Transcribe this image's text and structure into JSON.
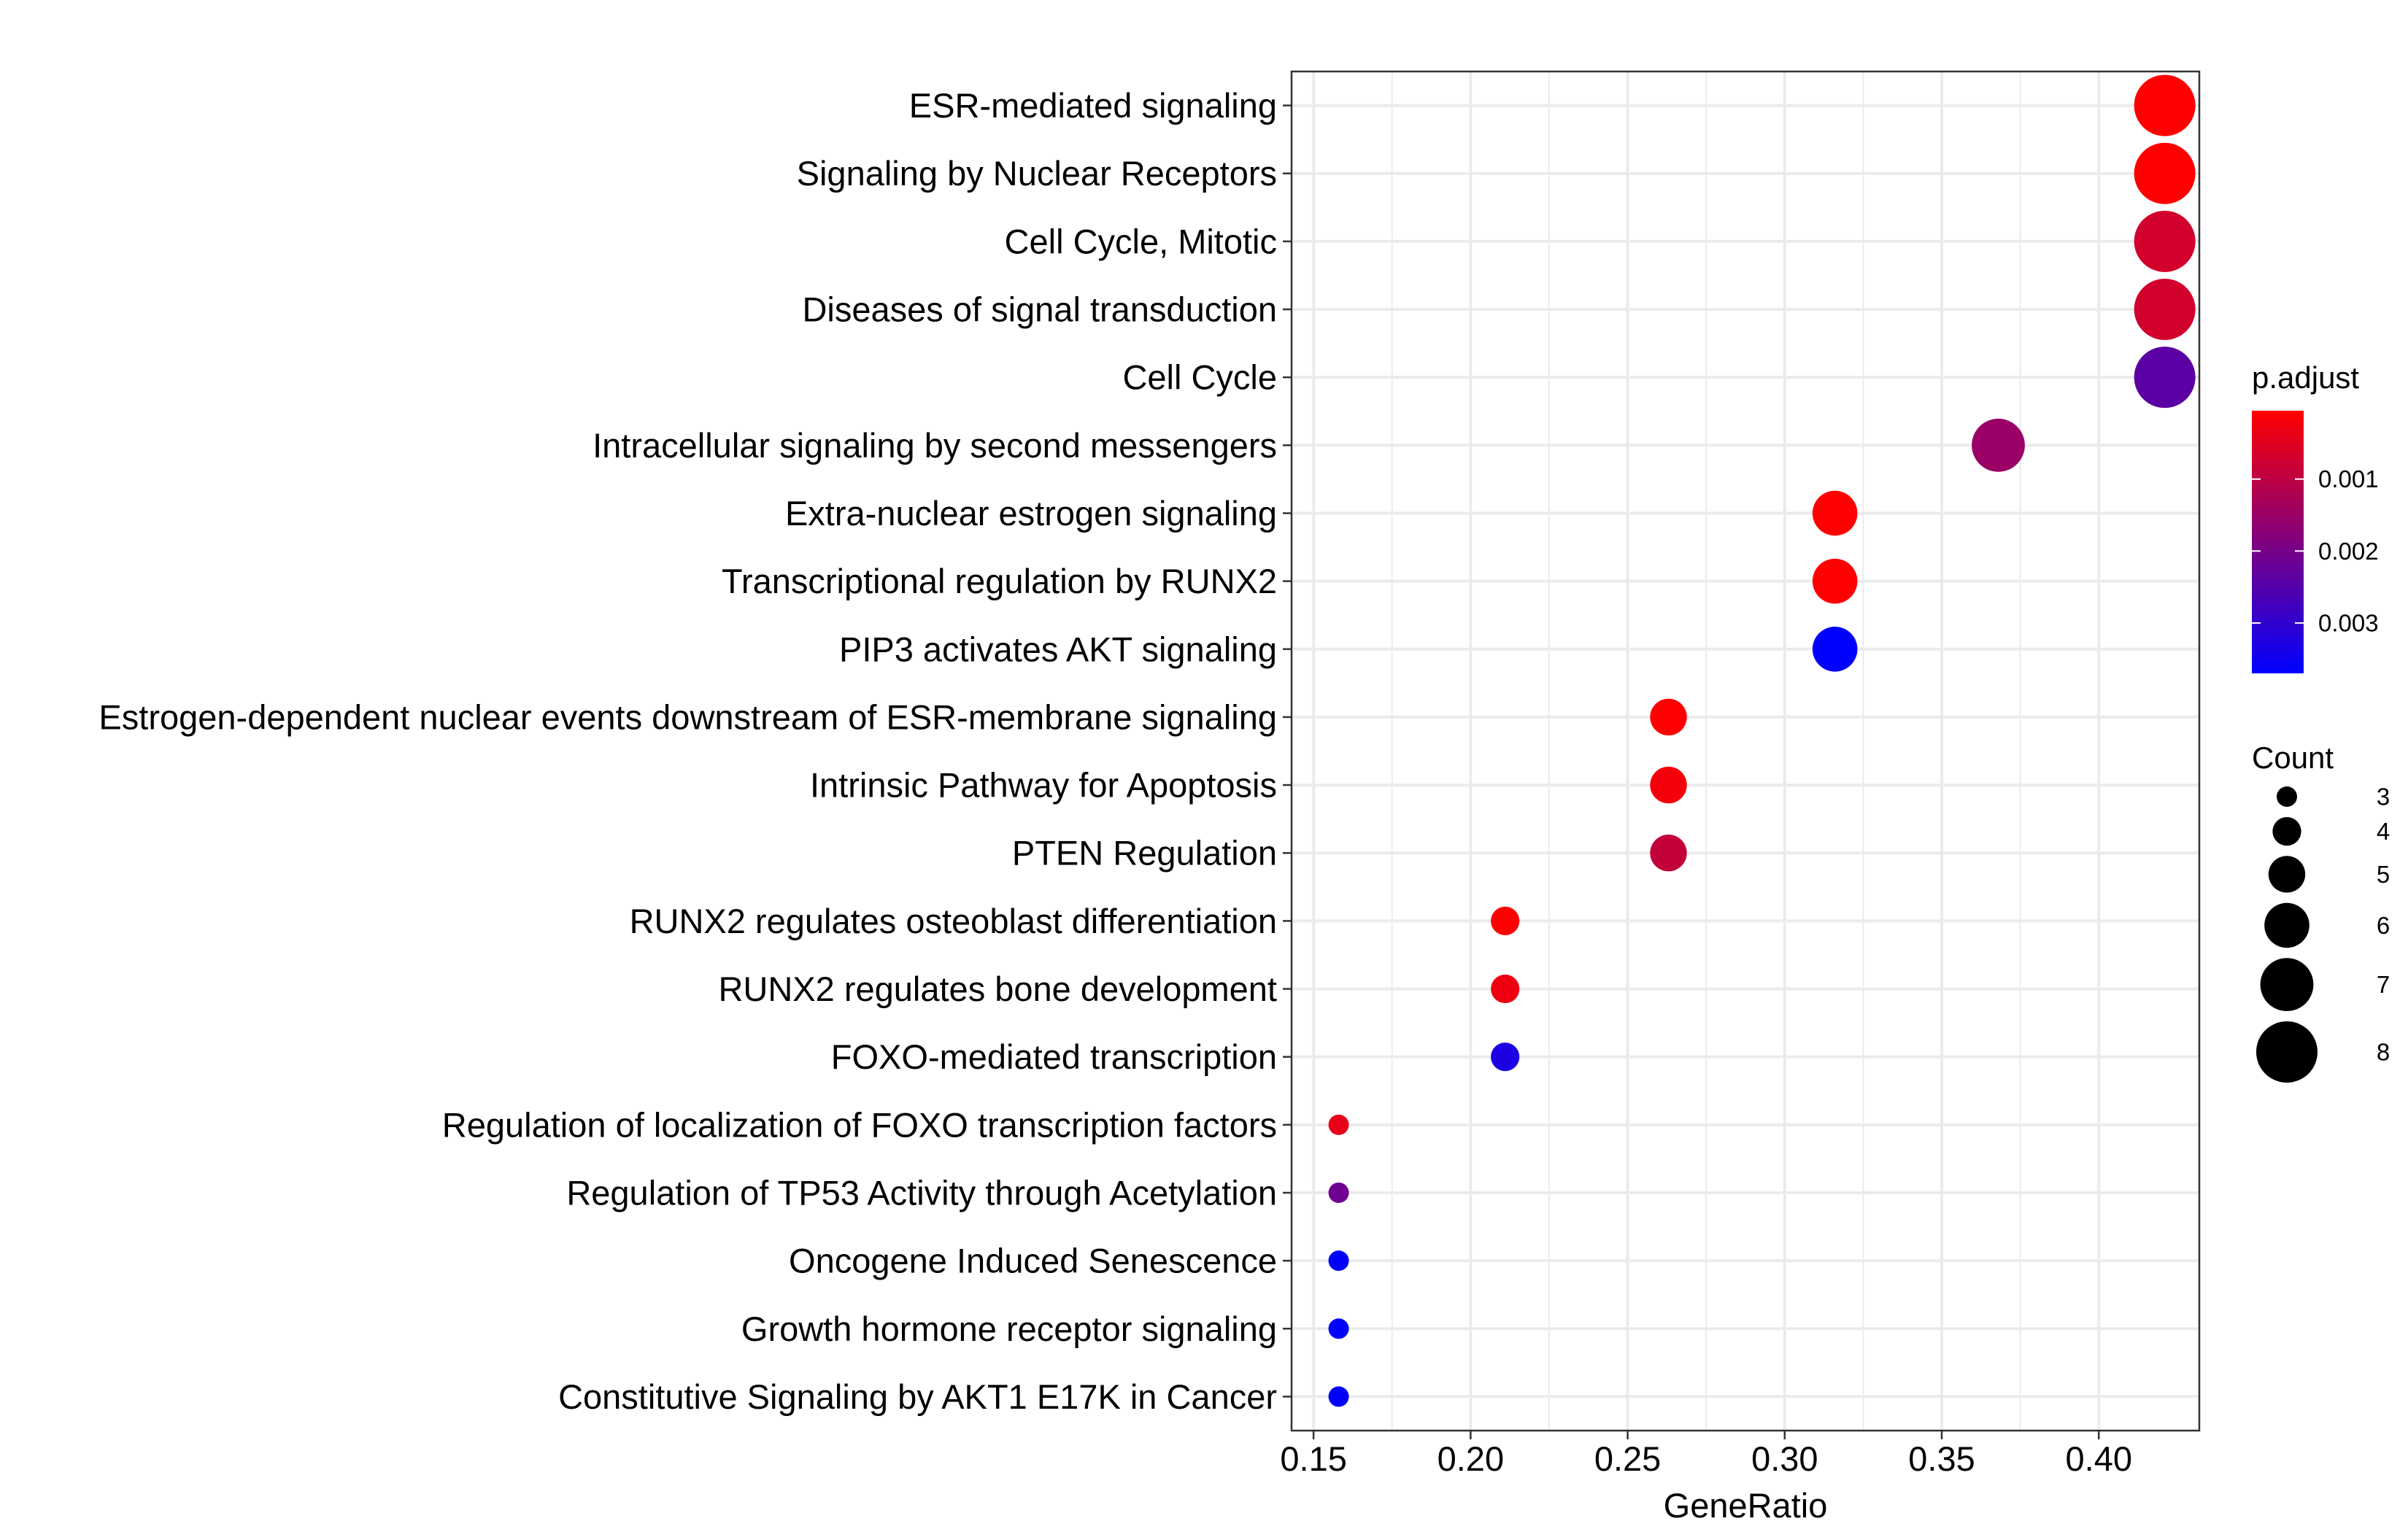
{
  "chart_data": {
    "type": "scatter",
    "xlabel": "GeneRatio",
    "ylabel": "",
    "xlim": [
      0.143,
      0.432
    ],
    "x_ticks": [
      0.15,
      0.2,
      0.25,
      0.3,
      0.35,
      0.4
    ],
    "x_tick_labels": [
      "0.15",
      "0.20",
      "0.25",
      "0.30",
      "0.35",
      "0.40"
    ],
    "grid": true,
    "legend_position": "right",
    "pathways": [
      {
        "label": "ESR-mediated signaling",
        "gene_ratio": 0.421,
        "count": 8,
        "p_adjust": 5e-05
      },
      {
        "label": "Signaling by Nuclear Receptors",
        "gene_ratio": 0.421,
        "count": 8,
        "p_adjust": 5e-05
      },
      {
        "label": "Cell Cycle, Mitotic",
        "gene_ratio": 0.421,
        "count": 8,
        "p_adjust": 0.0007
      },
      {
        "label": "Diseases of signal transduction",
        "gene_ratio": 0.421,
        "count": 8,
        "p_adjust": 0.0007
      },
      {
        "label": "Cell Cycle",
        "gene_ratio": 0.421,
        "count": 8,
        "p_adjust": 0.0024
      },
      {
        "label": "Intracellular signaling by second messengers",
        "gene_ratio": 0.368,
        "count": 7,
        "p_adjust": 0.0015
      },
      {
        "label": "Extra-nuclear estrogen signaling",
        "gene_ratio": 0.316,
        "count": 6,
        "p_adjust": 5e-05
      },
      {
        "label": "Transcriptional regulation by RUNX2",
        "gene_ratio": 0.316,
        "count": 6,
        "p_adjust": 5e-05
      },
      {
        "label": "PIP3 activates AKT signaling",
        "gene_ratio": 0.316,
        "count": 6,
        "p_adjust": 0.0037
      },
      {
        "label": "Estrogen-dependent nuclear events downstream of ESR-membrane signaling",
        "gene_ratio": 0.263,
        "count": 5,
        "p_adjust": 5e-05
      },
      {
        "label": "Intrinsic Pathway for Apoptosis",
        "gene_ratio": 0.263,
        "count": 5,
        "p_adjust": 0.0002
      },
      {
        "label": "PTEN Regulation",
        "gene_ratio": 0.263,
        "count": 5,
        "p_adjust": 0.0009
      },
      {
        "label": "RUNX2 regulates osteoblast differentiation",
        "gene_ratio": 0.211,
        "count": 4,
        "p_adjust": 5e-05
      },
      {
        "label": "RUNX2 regulates bone development",
        "gene_ratio": 0.211,
        "count": 4,
        "p_adjust": 0.0003
      },
      {
        "label": "FOXO-mediated transcription",
        "gene_ratio": 0.211,
        "count": 4,
        "p_adjust": 0.0033
      },
      {
        "label": "Regulation of localization of FOXO transcription factors",
        "gene_ratio": 0.158,
        "count": 3,
        "p_adjust": 0.0004
      },
      {
        "label": "Regulation of TP53 Activity through Acetylation",
        "gene_ratio": 0.158,
        "count": 3,
        "p_adjust": 0.0021
      },
      {
        "label": "Oncogene Induced Senescence",
        "gene_ratio": 0.158,
        "count": 3,
        "p_adjust": 0.0037
      },
      {
        "label": "Growth hormone receptor signaling",
        "gene_ratio": 0.158,
        "count": 3,
        "p_adjust": 0.0037
      },
      {
        "label": "Constitutive Signaling by AKT1 E17K in Cancer",
        "gene_ratio": 0.158,
        "count": 3,
        "p_adjust": 0.0037
      }
    ],
    "color_legend": {
      "title": "p.adjust",
      "min": 5e-05,
      "max": 0.0037,
      "low_color": "#ff0000",
      "high_color": "#0000ff",
      "ticks": [
        0.001,
        0.002,
        0.003
      ],
      "tick_labels": [
        "0.001",
        "0.002",
        "0.003"
      ]
    },
    "size_legend": {
      "title": "Count",
      "values": [
        3,
        4,
        5,
        6,
        7,
        8
      ],
      "labels": [
        "3",
        "4",
        "5",
        "6",
        "7",
        "8"
      ]
    }
  }
}
